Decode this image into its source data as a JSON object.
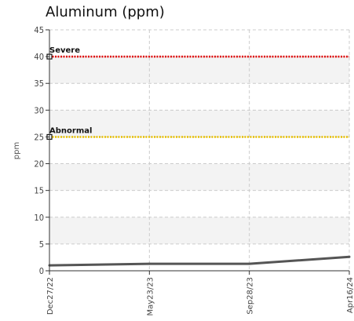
{
  "chart_data": {
    "type": "line",
    "title": "Aluminum (ppm)",
    "xlabel": "",
    "ylabel": "ppm",
    "ylim": [
      0,
      45
    ],
    "yticks": [
      0,
      5,
      10,
      15,
      20,
      25,
      30,
      35,
      40,
      45
    ],
    "xticks": [
      "Dec27/22",
      "May23/23",
      "Sep28/23",
      "Apr16/24"
    ],
    "grid": true,
    "series": [
      {
        "x": [
          "Dec27/22",
          "May23/23",
          "Sep28/23",
          "Apr16/24"
        ],
        "values": [
          1,
          1.3,
          1.3,
          2.6
        ]
      }
    ],
    "thresholds": [
      {
        "label": "Severe",
        "value": 40,
        "color": "#e00000"
      },
      {
        "label": "Abnormal",
        "value": 25,
        "color": "#e8c000"
      }
    ],
    "colors": {
      "line": "#555555",
      "band": "#f3f3f3",
      "grid": "#cccccc",
      "axis": "#333333"
    }
  }
}
